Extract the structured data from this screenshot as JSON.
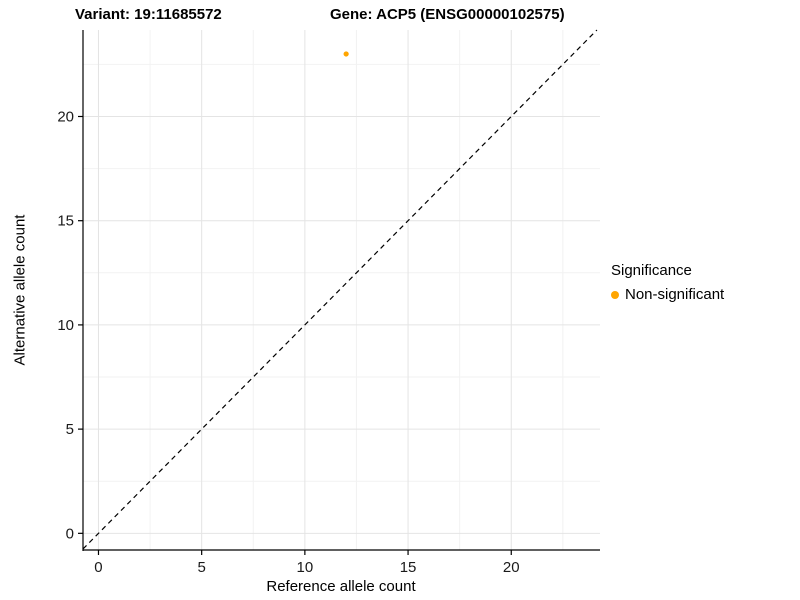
{
  "chart_data": {
    "type": "scatter",
    "title_left": "Variant: 19:11685572",
    "title_right": "Gene: ACP5 (ENSG00000102575)",
    "xlabel": "Reference allele count",
    "ylabel": "Alternative allele count",
    "xlim": [
      -0.75,
      24.3
    ],
    "ylim": [
      -0.8,
      24.15
    ],
    "x_ticks": [
      0,
      5,
      10,
      15,
      20
    ],
    "y_ticks": [
      0,
      5,
      10,
      15,
      20
    ],
    "x_minor_ticks": [
      2.5,
      7.5,
      12.5,
      17.5,
      22.5
    ],
    "y_minor_ticks": [
      2.5,
      7.5,
      12.5,
      17.5,
      22.5
    ],
    "grid": true,
    "series": [
      {
        "name": "Non-significant",
        "color": "#FFA500",
        "points": [
          {
            "x": 12,
            "y": 23
          }
        ]
      }
    ],
    "reference_line": {
      "slope": 1,
      "intercept": 0,
      "style": "dashed",
      "color": "#000000"
    },
    "legend": {
      "title": "Significance",
      "position": "right",
      "entries": [
        {
          "label": "Non-significant",
          "color": "#FFA500"
        }
      ]
    },
    "colors": {
      "major_grid": "#e4e4e4",
      "minor_grid": "#f2f2f2",
      "axis_line": "#000000",
      "tick_text": "#1a1a1a"
    }
  }
}
